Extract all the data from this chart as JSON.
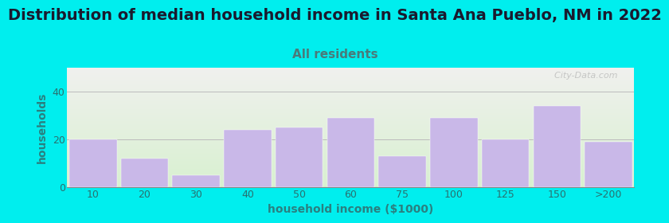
{
  "title": "Distribution of median household income in Santa Ana Pueblo, NM in 2022",
  "subtitle": "All residents",
  "xlabel": "household income ($1000)",
  "ylabel": "households",
  "bar_labels": [
    "10",
    "20",
    "30",
    "40",
    "50",
    "60",
    "75",
    "100",
    "125",
    "150",
    ">200"
  ],
  "bar_values": [
    20,
    12,
    5,
    24,
    25,
    29,
    13,
    29,
    20,
    34,
    19
  ],
  "bar_color": "#c9b8e8",
  "bar_edgecolor": "#c9b8e8",
  "background_color": "#00eeee",
  "ylim": [
    0,
    50
  ],
  "yticks": [
    0,
    20,
    40
  ],
  "title_fontsize": 14,
  "subtitle_fontsize": 11,
  "title_color": "#1a1a2e",
  "subtitle_color": "#4a7a7a",
  "axis_label_color": "#2a8080",
  "tick_color": "#2a7070",
  "axis_label_fontsize": 10,
  "tick_fontsize": 9,
  "watermark_text": "  City-Data.com"
}
